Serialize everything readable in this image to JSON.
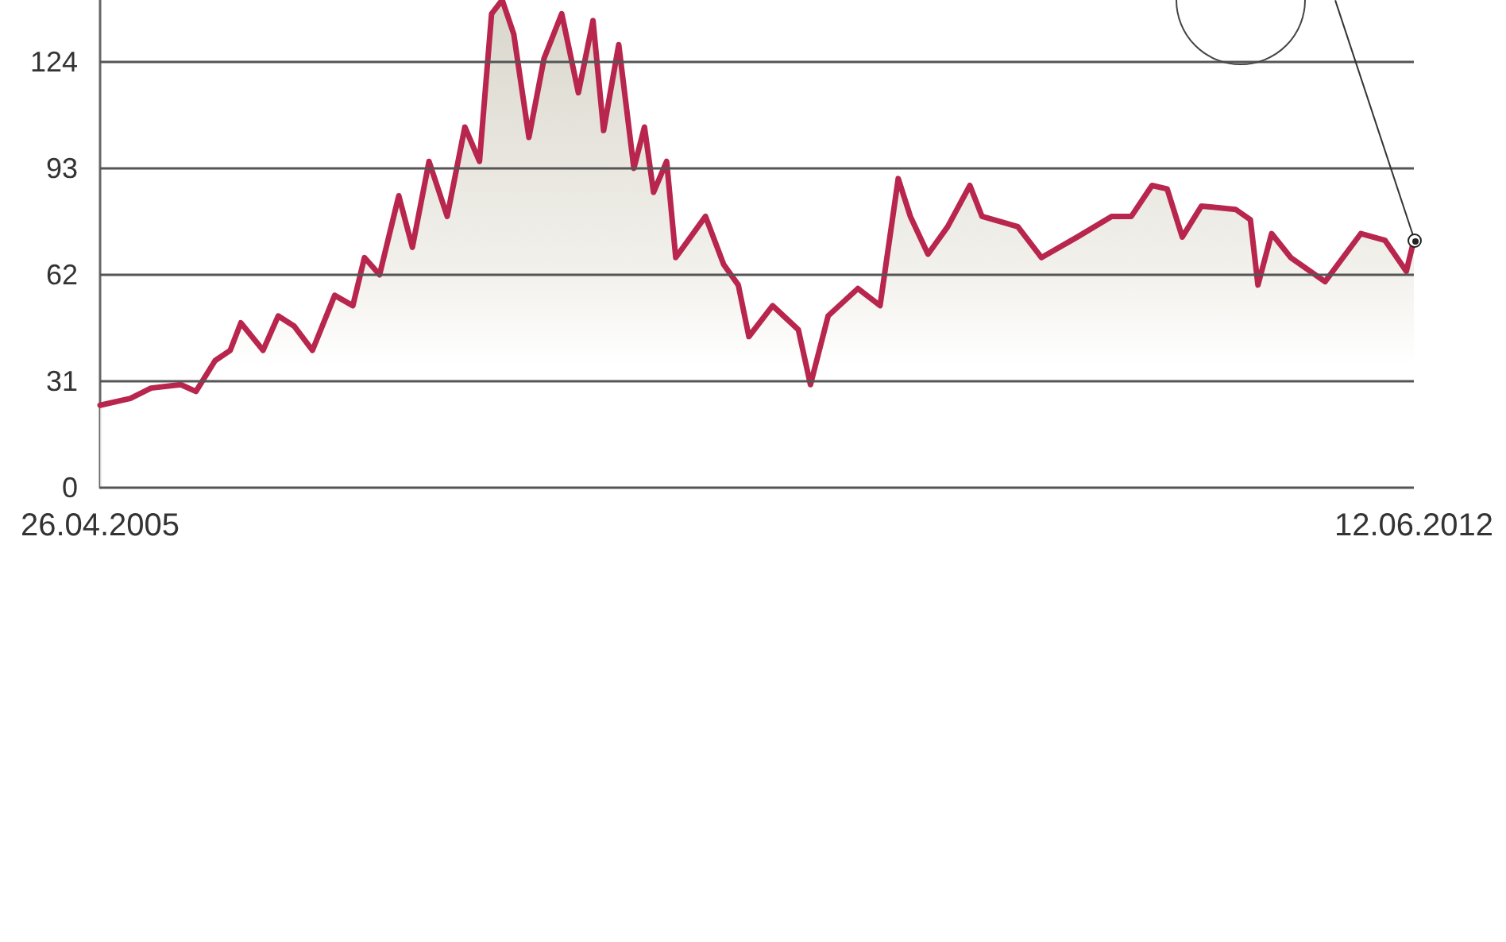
{
  "chart_data": {
    "type": "area",
    "x": [
      "2005-04-26",
      "2005-06-25",
      "2005-08-05",
      "2005-10-03",
      "2005-11-02",
      "2005-12-10",
      "2006-01-09",
      "2006-01-30",
      "2006-03-15",
      "2006-04-14",
      "2006-05-16",
      "2006-06-21",
      "2006-08-04",
      "2006-09-09",
      "2006-10-02",
      "2006-11-01",
      "2006-12-09",
      "2007-01-05",
      "2007-02-07",
      "2007-03-15",
      "2007-04-19",
      "2007-05-18",
      "2007-06-11",
      "2007-07-02",
      "2007-07-25",
      "2007-08-24",
      "2007-09-23",
      "2007-10-28",
      "2007-11-30",
      "2007-12-29",
      "2008-01-19",
      "2008-02-18",
      "2008-03-19",
      "2008-04-09",
      "2008-04-27",
      "2008-05-23",
      "2008-06-10",
      "2008-08-08",
      "2008-09-13",
      "2008-10-12",
      "2008-11-02",
      "2008-12-19",
      "2009-02-08",
      "2009-03-04",
      "2009-04-08",
      "2009-06-06",
      "2009-07-20",
      "2009-08-25",
      "2009-09-18",
      "2009-10-23",
      "2009-12-01",
      "2010-01-14",
      "2010-02-07",
      "2010-04-19",
      "2010-06-05",
      "2010-08-15",
      "2010-10-22",
      "2010-11-30",
      "2011-01-10",
      "2011-02-09",
      "2011-03-11",
      "2011-04-18",
      "2011-06-25",
      "2011-07-24",
      "2011-08-08",
      "2011-09-04",
      "2011-10-12",
      "2011-12-19",
      "2012-02-28",
      "2012-04-16",
      "2012-05-28",
      "2012-06-12"
    ],
    "series": [
      {
        "color": "#b8264e",
        "values": [
          24,
          26,
          29,
          30,
          28,
          37,
          40,
          48,
          40,
          50,
          47,
          40,
          56,
          53,
          67,
          62,
          85,
          70,
          95,
          79,
          105,
          95,
          138,
          142,
          132,
          102,
          125,
          138,
          115,
          136,
          104,
          129,
          93,
          105,
          86,
          95,
          67,
          79,
          65,
          59,
          44,
          53,
          46,
          30,
          50,
          58,
          53,
          90,
          79,
          68,
          76,
          88,
          79,
          76,
          67,
          73,
          79,
          79,
          88,
          87,
          73,
          82,
          81,
          78,
          59,
          74,
          67,
          60,
          74,
          72,
          63,
          72
        ]
      }
    ],
    "xlim": [
      "2005-04-26",
      "2012-06-12"
    ],
    "xticks": [
      {
        "value": "2005-04-26",
        "label": "26.04.2005"
      },
      {
        "value": "2012-06-12",
        "label": "12.06.2012"
      }
    ],
    "ylim": [
      0,
      142
    ],
    "yticks": [
      0,
      31,
      62,
      93,
      124
    ],
    "grid": "y"
  }
}
